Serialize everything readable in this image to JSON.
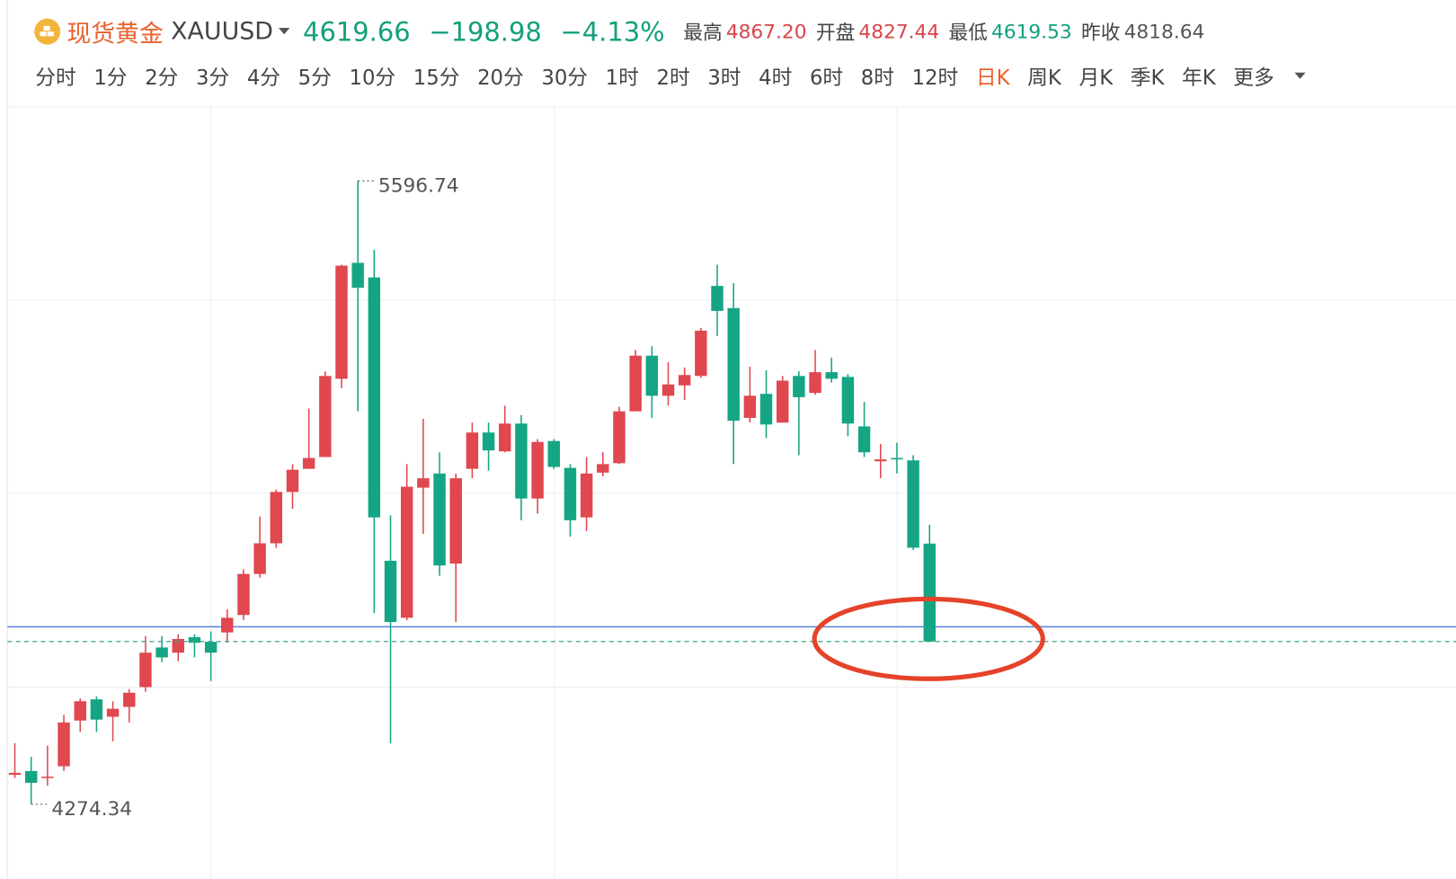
{
  "header": {
    "name": "现货黄金",
    "symbol": "XAUUSD",
    "price": "4619.66",
    "change": "−198.98",
    "change_pct": "−4.13%",
    "stats": [
      {
        "label": "最高",
        "value": "4867.20",
        "color": "#d9434b"
      },
      {
        "label": "开盘",
        "value": "4827.44",
        "color": "#d9434b"
      },
      {
        "label": "最低",
        "value": "4619.53",
        "color": "#14a07c"
      },
      {
        "label": "昨收",
        "value": "4818.64",
        "color": "#555555"
      }
    ]
  },
  "tabs": {
    "items": [
      "分时",
      "1分",
      "2分",
      "3分",
      "4分",
      "5分",
      "10分",
      "15分",
      "20分",
      "30分",
      "1时",
      "2时",
      "3时",
      "4时",
      "6时",
      "8时",
      "12时",
      "日K",
      "周K",
      "月K",
      "季K",
      "年K",
      "更多"
    ],
    "active": 17
  },
  "chart_data": {
    "type": "candlestick",
    "up_color": "#e0474f",
    "down_color": "#15a584",
    "ylim": [
      4117,
      5754
    ],
    "open": [
      4337,
      4345,
      4330,
      4355,
      4452,
      4497,
      4460,
      4481,
      4523,
      4607,
      4596,
      4629,
      4619,
      4639,
      4676,
      4763,
      4828,
      4937,
      4986,
      5011,
      5177,
      5423,
      5392,
      4791,
      4670,
      4946,
      4976,
      4785,
      4986,
      5063,
      5023,
      5082,
      4923,
      5045,
      4988,
      4883,
      4978,
      4998,
      5108,
      5226,
      5141,
      5163,
      5183,
      5374,
      5327,
      5094,
      5145,
      5084,
      5183,
      5147,
      5191,
      5181,
      5076,
      5002,
      5009,
      5004,
      4827.44
    ],
    "high": [
      4404,
      4375,
      4399,
      4464,
      4499,
      4503,
      4493,
      4519,
      4631,
      4631,
      4635,
      4635,
      4641,
      4688,
      4773,
      4885,
      4942,
      4996,
      5114,
      5193,
      5419,
      5596.74,
      5451,
      4887,
      4996,
      5092,
      5021,
      4976,
      5084,
      5084,
      5120,
      5100,
      5049,
      5049,
      4996,
      5011,
      5021,
      5118,
      5238,
      5246,
      5212,
      5201,
      5285,
      5419,
      5380,
      5203,
      5195,
      5183,
      5193,
      5238,
      5222,
      5187,
      5128,
      5039,
      5041,
      5015,
      4867.2
    ],
    "low": [
      4330,
      4274.34,
      4314,
      4345,
      4428,
      4428,
      4408,
      4448,
      4513,
      4576,
      4578,
      4586,
      4536,
      4617,
      4665,
      4755,
      4818,
      4901,
      4986,
      5011,
      5157,
      5108,
      4680,
      4404,
      4665,
      4848,
      4759,
      4661,
      4966,
      4982,
      5021,
      4877,
      4891,
      4986,
      4842,
      4854,
      4970,
      4996,
      5108,
      5094,
      5120,
      5132,
      5179,
      5268,
      4996,
      5084,
      5051,
      5084,
      5015,
      5143,
      5169,
      5055,
      5011,
      4966,
      4976,
      4814,
      4619.53
    ],
    "close": [
      4341,
      4320,
      4333,
      4448,
      4493,
      4454,
      4477,
      4511,
      4596,
      4586,
      4625,
      4617,
      4596,
      4670,
      4763,
      4828,
      4937,
      4984,
      5009,
      5183,
      5417,
      5370,
      4883,
      4661,
      4948,
      4966,
      4781,
      4966,
      5063,
      5025,
      5082,
      4923,
      5043,
      4990,
      4877,
      4976,
      4996,
      5108,
      5226,
      5141,
      5165,
      5185,
      5279,
      5321,
      5088,
      5141,
      5080,
      5173,
      5138,
      5191,
      5177,
      5082,
      5021,
      5006,
      5006,
      4818.64,
      4619.66
    ]
  }
}
